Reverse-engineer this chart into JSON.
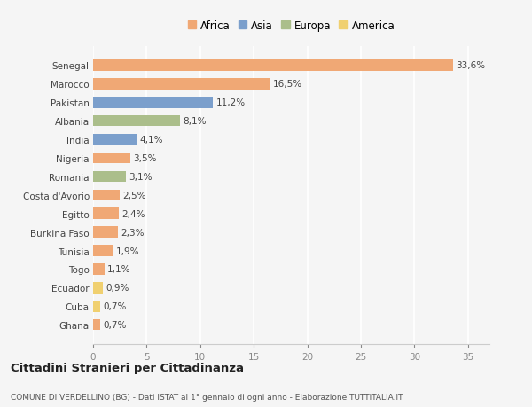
{
  "countries": [
    "Senegal",
    "Marocco",
    "Pakistan",
    "Albania",
    "India",
    "Nigeria",
    "Romania",
    "Costa d'Avorio",
    "Egitto",
    "Burkina Faso",
    "Tunisia",
    "Togo",
    "Ecuador",
    "Cuba",
    "Ghana"
  ],
  "values": [
    33.6,
    16.5,
    11.2,
    8.1,
    4.1,
    3.5,
    3.1,
    2.5,
    2.4,
    2.3,
    1.9,
    1.1,
    0.9,
    0.7,
    0.7
  ],
  "labels": [
    "33,6%",
    "16,5%",
    "11,2%",
    "8,1%",
    "4,1%",
    "3,5%",
    "3,1%",
    "2,5%",
    "2,4%",
    "2,3%",
    "1,9%",
    "1,1%",
    "0,9%",
    "0,7%",
    "0,7%"
  ],
  "continents": [
    "Africa",
    "Africa",
    "Asia",
    "Europa",
    "Asia",
    "Africa",
    "Europa",
    "Africa",
    "Africa",
    "Africa",
    "Africa",
    "Africa",
    "America",
    "America",
    "Africa"
  ],
  "colors": {
    "Africa": "#F0A875",
    "Asia": "#7B9FCC",
    "Europa": "#ABBE8B",
    "America": "#F0D070"
  },
  "legend_order": [
    "Africa",
    "Asia",
    "Europa",
    "America"
  ],
  "title": "Cittadini Stranieri per Cittadinanza",
  "subtitle": "COMUNE DI VERDELLINO (BG) - Dati ISTAT al 1° gennaio di ogni anno - Elaborazione TUTTITALIA.IT",
  "xlim": [
    0,
    37
  ],
  "xticks": [
    0,
    5,
    10,
    15,
    20,
    25,
    30,
    35
  ],
  "bg_color": "#f5f5f5",
  "bar_height": 0.6,
  "label_fontsize": 7.5,
  "ytick_fontsize": 7.5,
  "xtick_fontsize": 7.5,
  "legend_fontsize": 8.5,
  "title_fontsize": 9.5,
  "subtitle_fontsize": 6.5
}
